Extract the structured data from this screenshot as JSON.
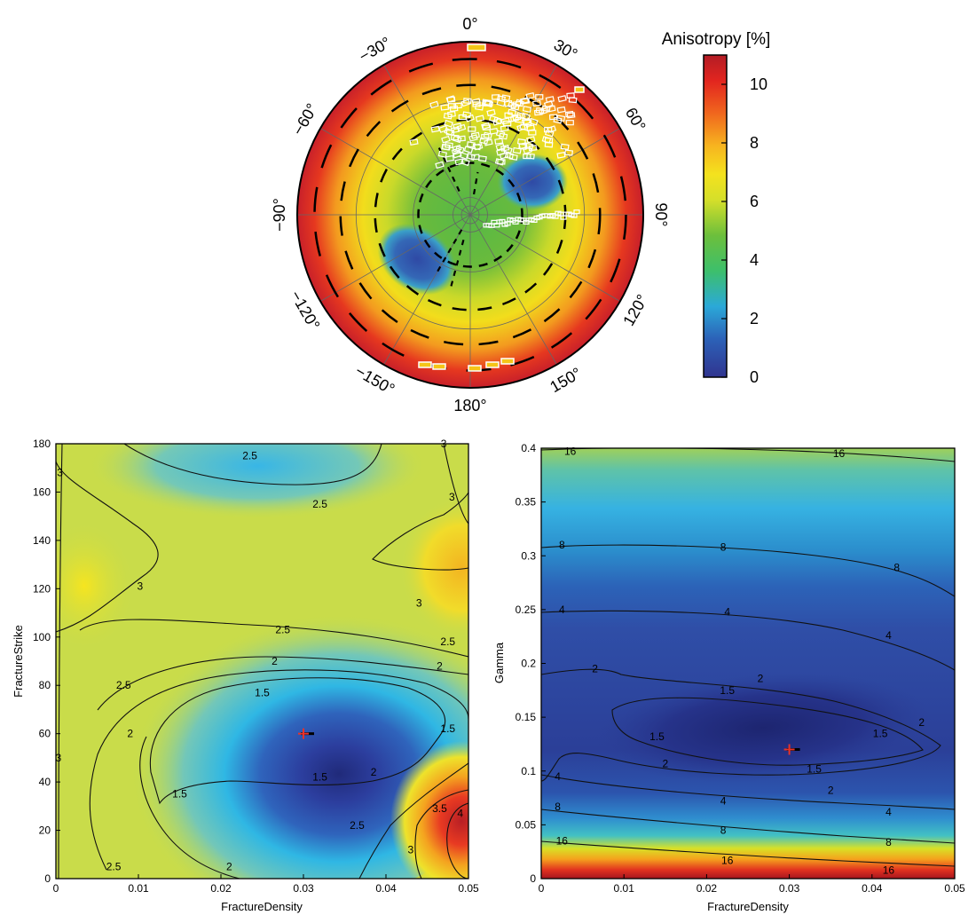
{
  "polar": {
    "angle_labels": [
      "0°",
      "30°",
      "60°",
      "90°",
      "120°",
      "150°",
      "180°",
      "−150°",
      "−120°",
      "−90°",
      "−60°",
      "−30°"
    ],
    "angles_deg": [
      0,
      30,
      60,
      90,
      120,
      150,
      180,
      -150,
      -120,
      -90,
      -60,
      -30
    ],
    "dashed_ring_fractions": [
      0.3,
      0.55,
      0.75,
      0.9
    ],
    "solid_ring_fractions": [
      0.1,
      0.33,
      0.66
    ],
    "colorbar": {
      "title": "Anisotropy [%]",
      "ticks": [
        "0",
        "2",
        "4",
        "6",
        "8",
        "10"
      ],
      "min": 0,
      "max": 11
    }
  },
  "left_plot": {
    "xlabel": "FractureDensity",
    "ylabel": "FractureStrike",
    "xticks": [
      "0",
      "0.01",
      "0.02",
      "0.03",
      "0.04",
      "0.05"
    ],
    "yticks": [
      "0",
      "20",
      "40",
      "60",
      "80",
      "100",
      "120",
      "140",
      "160",
      "180"
    ],
    "marker": {
      "x": 0.03,
      "y": 60
    },
    "contour_labels": [
      {
        "text": "2.5",
        "x": 0.0235,
        "y": 175
      },
      {
        "text": "2.5",
        "x": 0.032,
        "y": 155
      },
      {
        "text": "3",
        "x": 0.0005,
        "y": 168
      },
      {
        "text": "3",
        "x": 0.047,
        "y": 180
      },
      {
        "text": "3",
        "x": 0.048,
        "y": 158
      },
      {
        "text": "3",
        "x": 0.0102,
        "y": 121
      },
      {
        "text": "3",
        "x": 0.044,
        "y": 114
      },
      {
        "text": "2.5",
        "x": 0.0275,
        "y": 103
      },
      {
        "text": "2.5",
        "x": 0.0475,
        "y": 98
      },
      {
        "text": "2",
        "x": 0.0265,
        "y": 90
      },
      {
        "text": "2",
        "x": 0.0465,
        "y": 88
      },
      {
        "text": "2.5",
        "x": 0.0082,
        "y": 80
      },
      {
        "text": "1.5",
        "x": 0.025,
        "y": 77
      },
      {
        "text": "1.5",
        "x": 0.0475,
        "y": 62
      },
      {
        "text": "2",
        "x": 0.009,
        "y": 60
      },
      {
        "text": "3",
        "x": 0.0003,
        "y": 50
      },
      {
        "text": "1.5",
        "x": 0.015,
        "y": 35
      },
      {
        "text": "1.5",
        "x": 0.032,
        "y": 42
      },
      {
        "text": "2",
        "x": 0.0385,
        "y": 44
      },
      {
        "text": "3.5",
        "x": 0.0465,
        "y": 29
      },
      {
        "text": "4",
        "x": 0.049,
        "y": 27
      },
      {
        "text": "2.5",
        "x": 0.0365,
        "y": 22
      },
      {
        "text": "3",
        "x": 0.043,
        "y": 12
      },
      {
        "text": "2",
        "x": 0.021,
        "y": 5
      },
      {
        "text": "2.5",
        "x": 0.007,
        "y": 5
      }
    ]
  },
  "right_plot": {
    "xlabel": "FractureDensity",
    "ylabel": "Gamma",
    "xticks": [
      "0",
      "0.01",
      "0.02",
      "0.03",
      "0.04",
      "0.05"
    ],
    "yticks": [
      "0",
      "0.05",
      "0.1",
      "0.15",
      "0.2",
      "0.25",
      "0.3",
      "0.35",
      "0.4"
    ],
    "marker": {
      "x": 0.03,
      "y": 0.12
    },
    "contour_labels": [
      {
        "text": "16",
        "x": 0.0035,
        "y": 0.397
      },
      {
        "text": "16",
        "x": 0.036,
        "y": 0.395
      },
      {
        "text": "8",
        "x": 0.0025,
        "y": 0.31
      },
      {
        "text": "8",
        "x": 0.022,
        "y": 0.308
      },
      {
        "text": "8",
        "x": 0.043,
        "y": 0.289
      },
      {
        "text": "4",
        "x": 0.0025,
        "y": 0.25
      },
      {
        "text": "4",
        "x": 0.0225,
        "y": 0.248
      },
      {
        "text": "4",
        "x": 0.042,
        "y": 0.226
      },
      {
        "text": "2",
        "x": 0.0065,
        "y": 0.195
      },
      {
        "text": "2",
        "x": 0.0265,
        "y": 0.186
      },
      {
        "text": "2",
        "x": 0.046,
        "y": 0.145
      },
      {
        "text": "1.5",
        "x": 0.0225,
        "y": 0.175
      },
      {
        "text": "1.5",
        "x": 0.014,
        "y": 0.132
      },
      {
        "text": "1.5",
        "x": 0.041,
        "y": 0.135
      },
      {
        "text": "1.5",
        "x": 0.033,
        "y": 0.102
      },
      {
        "text": "2",
        "x": 0.015,
        "y": 0.107
      },
      {
        "text": "2",
        "x": 0.035,
        "y": 0.082
      },
      {
        "text": "4",
        "x": 0.002,
        "y": 0.095
      },
      {
        "text": "4",
        "x": 0.022,
        "y": 0.072
      },
      {
        "text": "4",
        "x": 0.042,
        "y": 0.062
      },
      {
        "text": "8",
        "x": 0.002,
        "y": 0.067
      },
      {
        "text": "8",
        "x": 0.022,
        "y": 0.045
      },
      {
        "text": "8",
        "x": 0.042,
        "y": 0.034
      },
      {
        "text": "16",
        "x": 0.0025,
        "y": 0.035
      },
      {
        "text": "16",
        "x": 0.0225,
        "y": 0.017
      },
      {
        "text": "16",
        "x": 0.042,
        "y": 0.008
      }
    ]
  },
  "chart_data": [
    {
      "type": "heatmap",
      "title": "",
      "description_label": "polar anisotropy map",
      "colorbar_label": "Anisotropy [%]",
      "angle_ticks_deg": [
        0,
        30,
        60,
        90,
        120,
        150,
        180,
        -150,
        -120,
        -90,
        -60,
        -30
      ],
      "value_range": [
        0,
        11
      ]
    },
    {
      "type": "heatmap",
      "title": "",
      "xlabel": "FractureDensity",
      "ylabel": "FractureStrike",
      "xlim": [
        0,
        0.05
      ],
      "ylim": [
        0,
        180
      ],
      "contour_levels": [
        1.5,
        2,
        2.5,
        3,
        3.5,
        4
      ],
      "minimum": {
        "x": 0.03,
        "y": 60
      }
    },
    {
      "type": "heatmap",
      "title": "",
      "xlabel": "FractureDensity",
      "ylabel": "Gamma",
      "xlim": [
        0,
        0.05
      ],
      "ylim": [
        0,
        0.4
      ],
      "contour_levels": [
        1.5,
        2,
        4,
        8,
        16
      ],
      "minimum": {
        "x": 0.03,
        "y": 0.12
      }
    }
  ]
}
